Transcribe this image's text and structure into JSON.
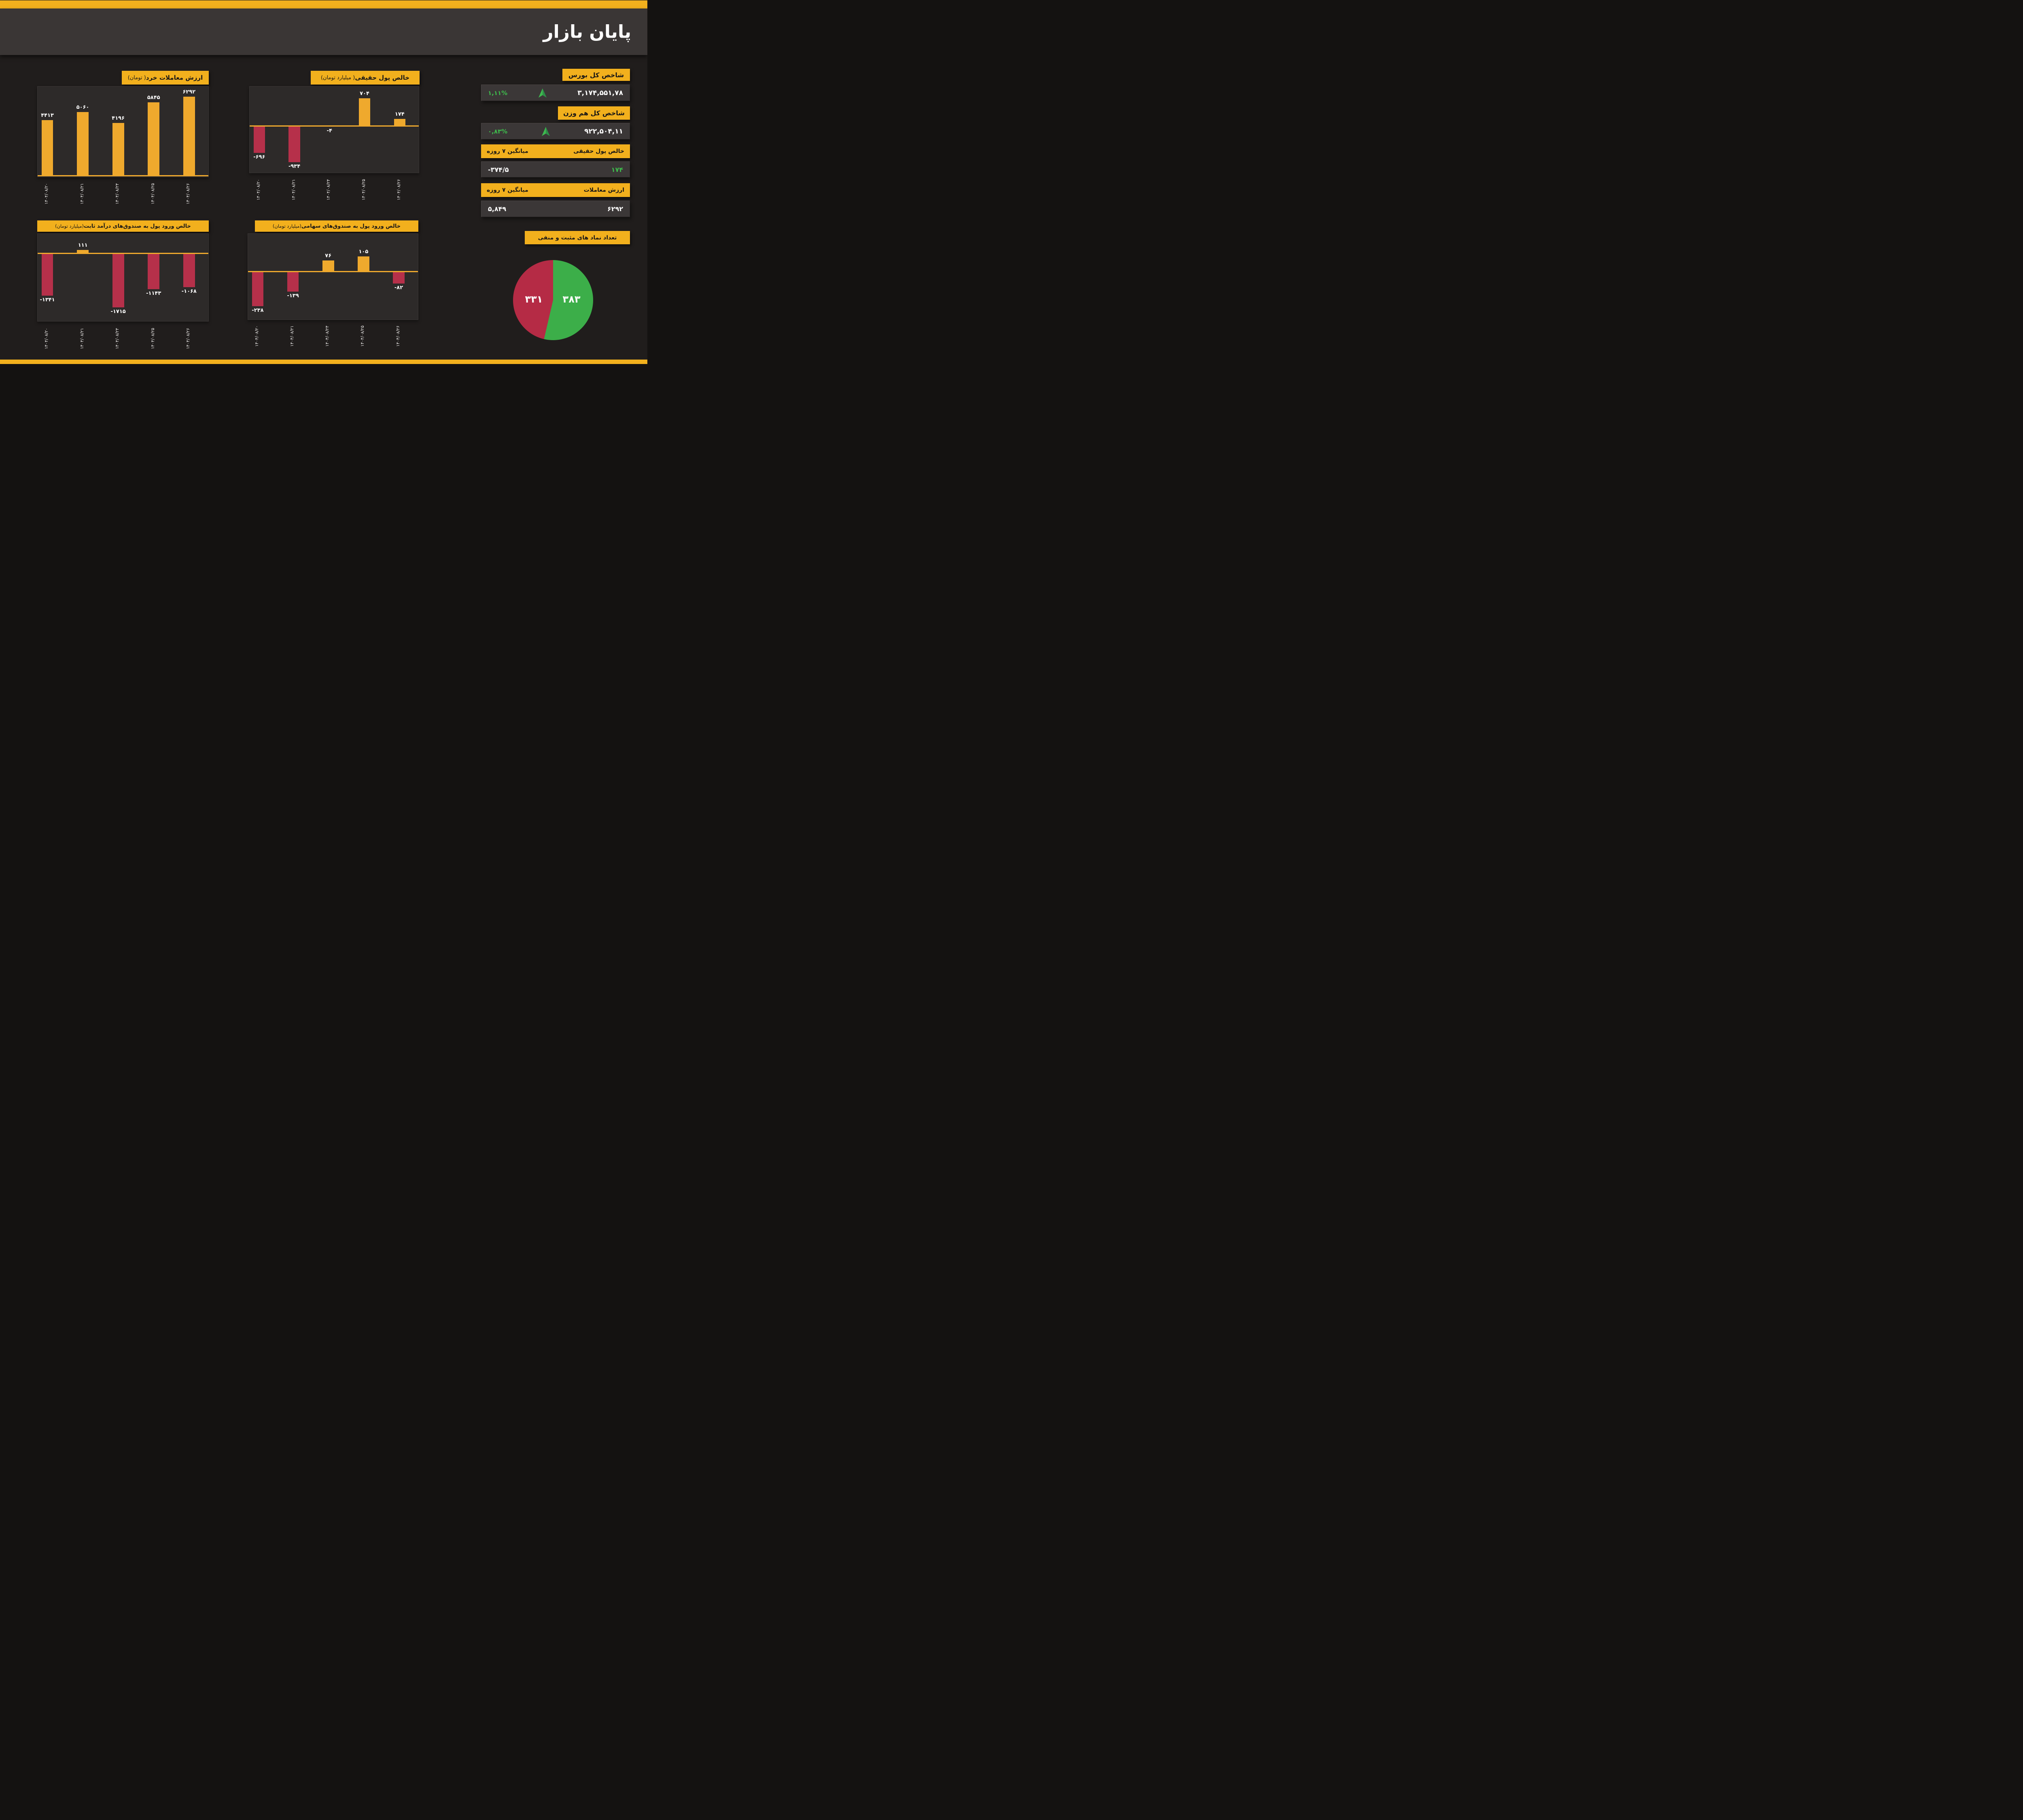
{
  "header": {
    "title": "پایان بازار"
  },
  "right_panel": {
    "sections": [
      {
        "badge": "شاخص کل بورس",
        "value": "۳,۱۷۴,۵۵۱,۷۸",
        "percent": "۱,۱۱%",
        "direction": "up"
      },
      {
        "badge": "شاخص کل هم وزن",
        "value": "۹۲۲,۵۰۴,۱۱",
        "percent": "۰,۸۳%",
        "direction": "up"
      },
      {
        "badge_right": "خالص پول حقیقی",
        "badge_left": "میانگین ۷ روزه",
        "value_right": "۱۷۴",
        "value_left": "-۳۷۴/۵"
      },
      {
        "badge_right": "ارزش معاملات",
        "badge_left": "میانگین ۷ روزه",
        "value_right": "۶۲۹۲",
        "value_left": "۵,۸۴۹"
      }
    ],
    "symbols_badge": "تعداد نماد های مثبت و منفی"
  },
  "chart_data": [
    {
      "type": "bar",
      "id": "retail-trade-value",
      "title_bold": "ارزش معاملات خرد",
      "title_tail": " ( تومان)",
      "categories": [
        "۱۴۰۴/۰۸/۲۰",
        "۱۴۰۴/۰۸/۲۱",
        "۱۴۰۴/۰۸/۲۴",
        "۱۴۰۴/۰۸/۲۵",
        "۱۴۰۴/۰۸/۲۶"
      ],
      "values": [
        4413,
        5060,
        4196,
        5845,
        6292
      ],
      "labels": [
        "۴۴۱۳",
        "۵۰۶۰",
        "۴۱۹۶",
        "۵۸۴۵",
        "۶۲۹۲"
      ],
      "ylim": [
        0,
        7200
      ],
      "grid": false,
      "legend": "none"
    },
    {
      "type": "bar",
      "id": "net-real-money",
      "title_bold": "خالص پول حقیقی",
      "title_tail": " ( میلیارد تومان)",
      "categories": [
        "۱۴۰۴/۰۸/۲۰",
        "۱۴۰۴/۰۸/۲۱",
        "۱۴۰۴/۰۸/۲۴",
        "۱۴۰۴/۰۸/۲۵",
        "۱۴۰۴/۰۸/۲۶"
      ],
      "values": [
        -696,
        -934,
        -4,
        704,
        174
      ],
      "labels": [
        "-۶۹۶",
        "-۹۳۴",
        "-۴",
        "۷۰۴",
        "۱۷۴"
      ],
      "ylim": [
        -1200,
        1000
      ],
      "grid": false,
      "legend": "none"
    },
    {
      "type": "bar",
      "id": "fixed-income-funds-flow",
      "title_bold": "خالص ورود پول به صندوق‌های درآمد ثابت",
      "title_tail": " (میلیارد  تومان)",
      "categories": [
        "۱۴۰۴/۰۸/۲۰",
        "۱۴۰۴/۰۸/۲۱",
        "۱۴۰۴/۰۸/۲۴",
        "۱۴۰۴/۰۸/۲۵",
        "۱۴۰۴/۰۸/۲۶"
      ],
      "values": [
        -1341,
        111,
        -1715,
        -1143,
        -1068
      ],
      "labels": [
        "-۱۳۴۱",
        "۱۱۱",
        "-۱۷۱۵",
        "-۱۱۴۳",
        "-۱۰۶۸"
      ],
      "ylim": [
        -2150,
        620
      ],
      "grid": false,
      "legend": "none"
    },
    {
      "type": "bar",
      "id": "equity-funds-flow",
      "title_bold": "خالص ورود پول به صندوق‌های سهامی",
      "title_tail": "(میلیارد تومان)",
      "categories": [
        "۱۴۰۴/۰۸/۲۰",
        "۱۴۰۴/۰۸/۲۱",
        "۱۴۰۴/۰۸/۲۴",
        "۱۴۰۴/۰۸/۲۵",
        "۱۴۰۴/۰۸/۲۶"
      ],
      "values": [
        -238,
        -139,
        76,
        105,
        -82
      ],
      "labels": [
        "-۲۳۸",
        "-۱۳۹",
        "۷۶",
        "۱۰۵",
        "-۸۲"
      ],
      "ylim": [
        -330,
        260
      ],
      "grid": false,
      "legend": "none"
    },
    {
      "type": "pie",
      "id": "positive-negative-symbols",
      "title": "تعداد نماد های مثبت و منفی",
      "slices": [
        {
          "name": "positive-symbols",
          "label": "۳۸۳",
          "value": 383,
          "color_key": "pie_green"
        },
        {
          "name": "negative-symbols",
          "label": "۳۳۱",
          "value": 331,
          "color_key": "pie_red"
        }
      ],
      "legend": "none"
    }
  ],
  "colors": {
    "page_bg": "#201D1C",
    "outer_bg": "#141211",
    "header_bg": "#3A3635",
    "panel_bg": "#2D2A29",
    "row_bg": "#3B3737",
    "accent_yellow": "#F2B01D",
    "bar_yellow": "#EFA92D",
    "bar_red": "#B6304A",
    "pie_green": "#3CAE49",
    "pie_red": "#B52B45",
    "green_text": "#3EBB4C",
    "arrow_light": "#3FBA50",
    "arrow_dark": "#2E8F47",
    "badge_text": "#191716",
    "text_light": "#FFFFFF"
  }
}
